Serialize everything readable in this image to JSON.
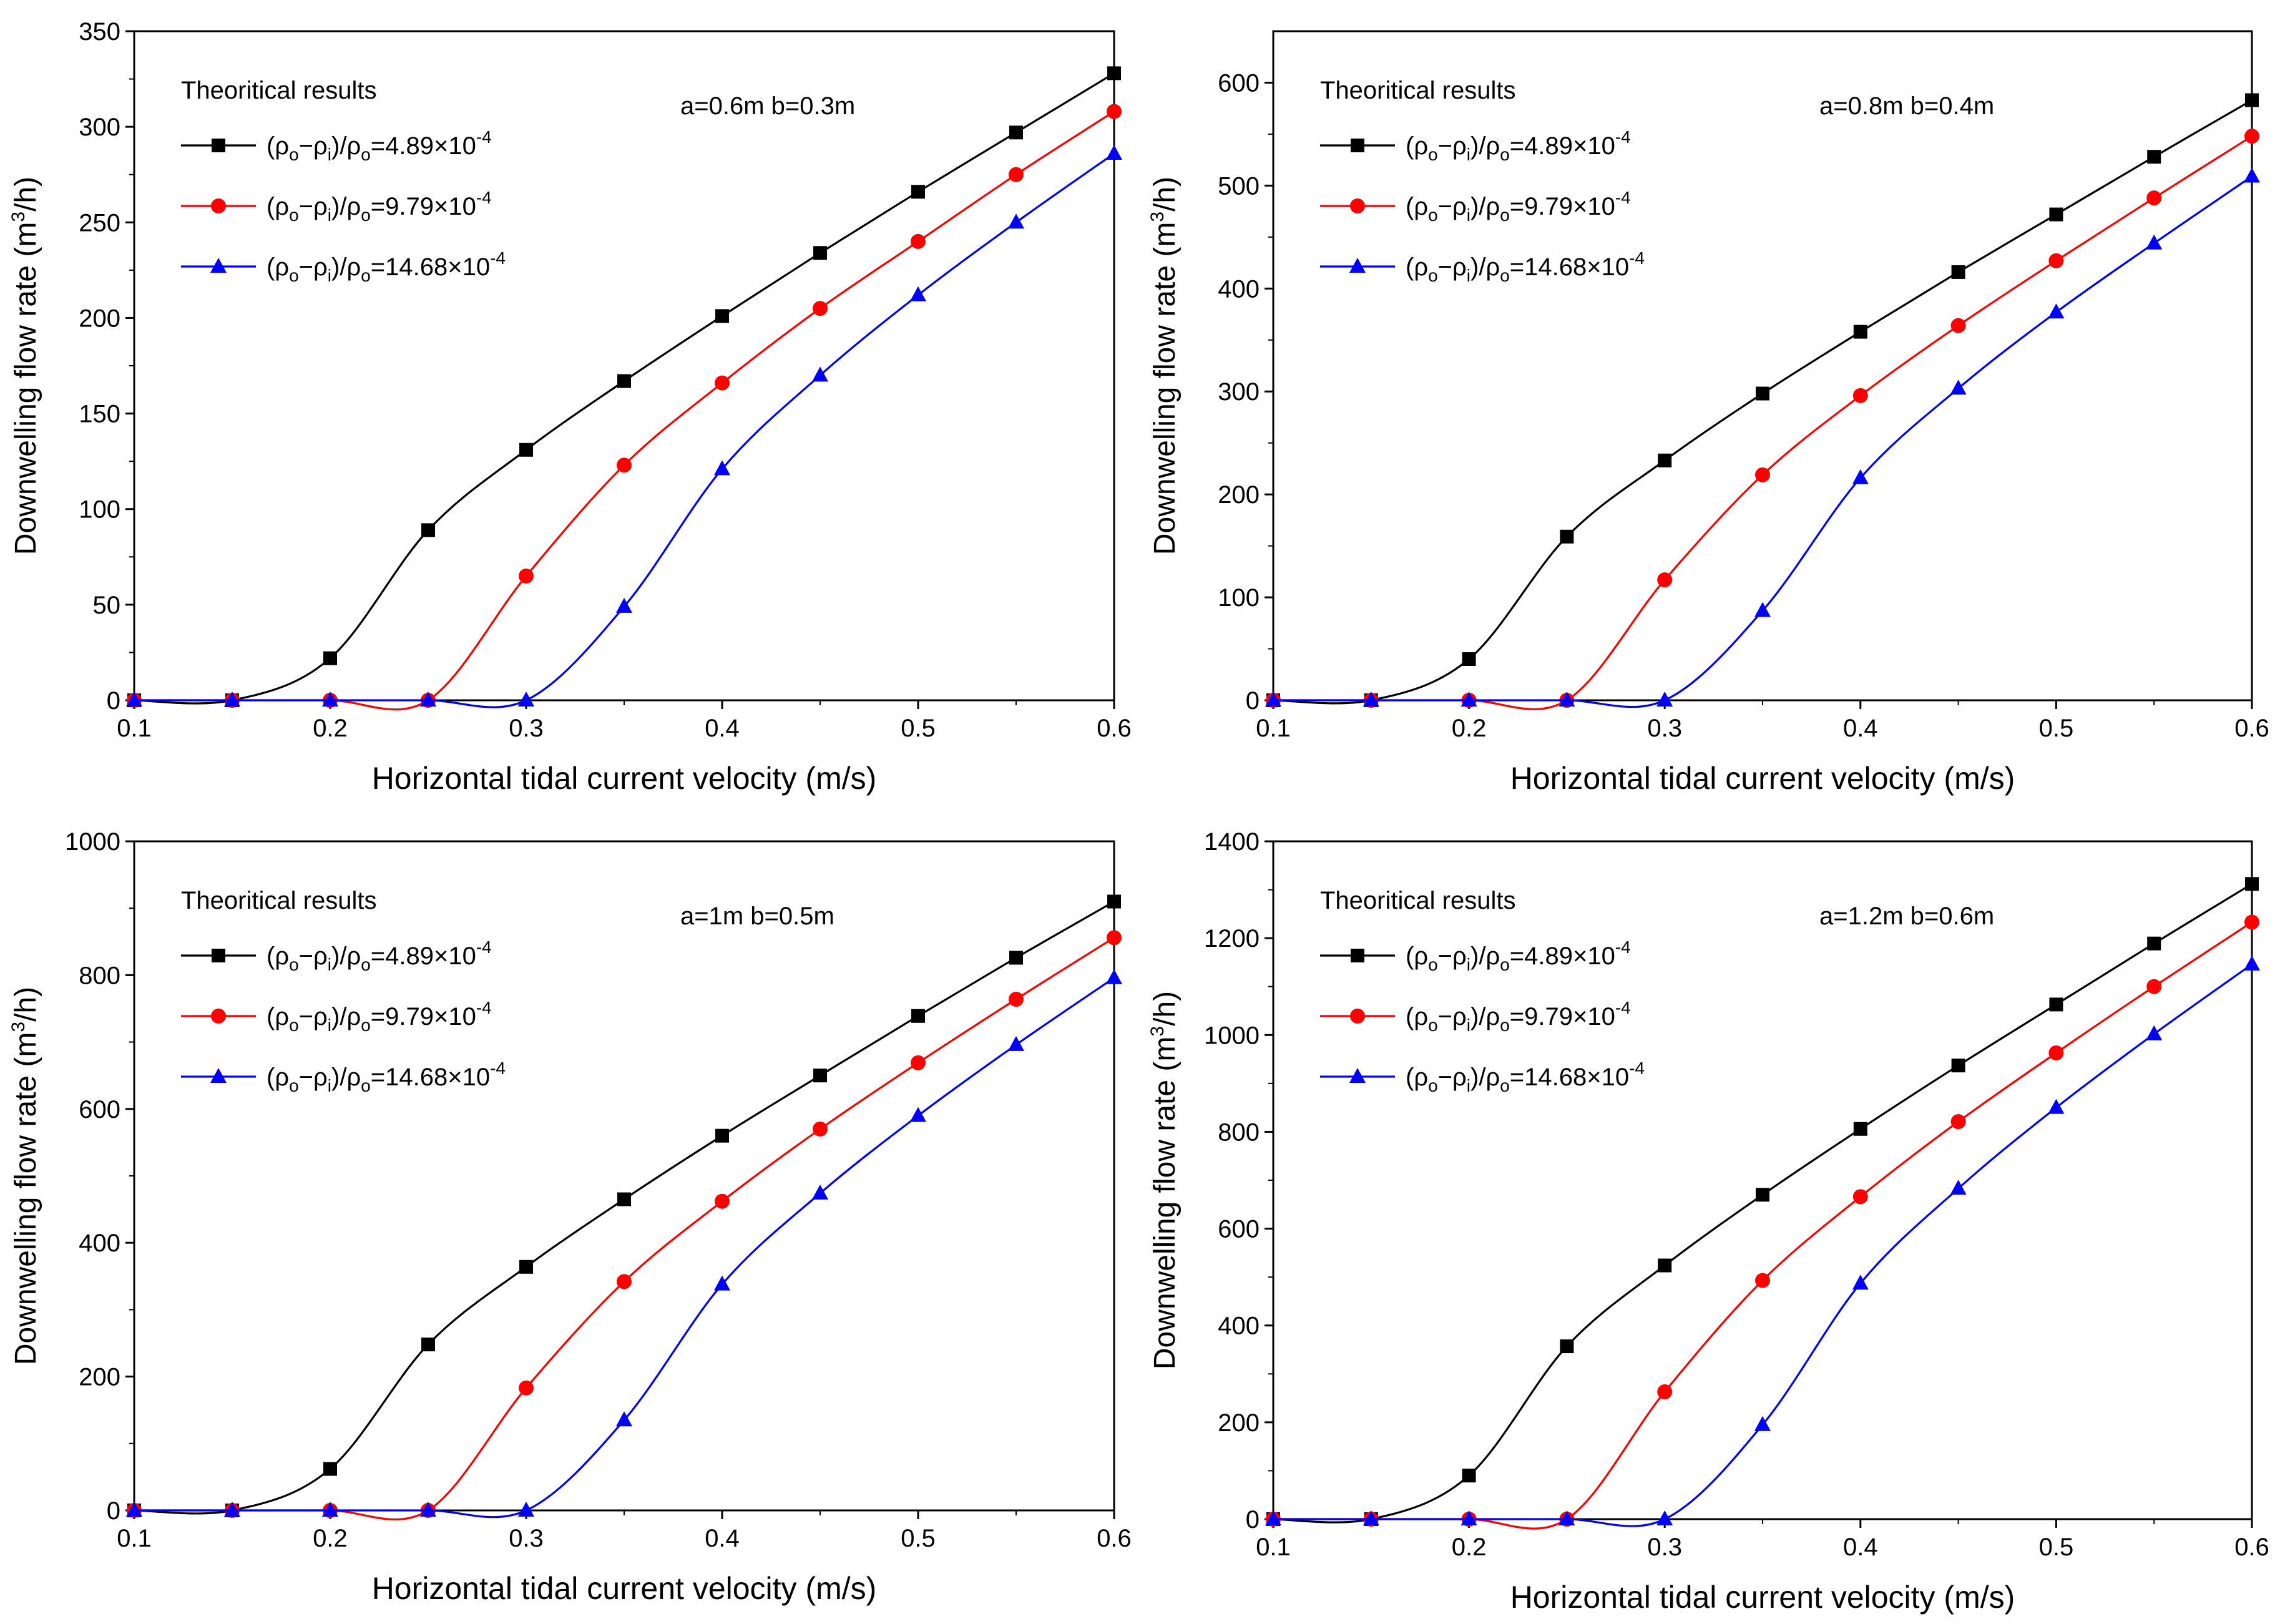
{
  "figure": {
    "layout": "2x2 grid"
  },
  "chart_data": [
    {
      "type": "line",
      "annotation": "a=0.6m b=0.3m",
      "legend_title": "Theoritical results",
      "xlabel": "Horizontal tidal current velocity (m/s)",
      "ylabel_base": "Downwelling flow rate (m",
      "ylabel_sup": "3",
      "ylabel_tail": "/h)",
      "xlim": [
        0.1,
        0.6
      ],
      "ylim": [
        0,
        350
      ],
      "xticks": [
        0.1,
        0.2,
        0.3,
        0.4,
        0.5,
        0.6
      ],
      "yticks": [
        0,
        50,
        100,
        150,
        200,
        250,
        300,
        350
      ],
      "x": [
        0.1,
        0.15,
        0.2,
        0.25,
        0.3,
        0.35,
        0.4,
        0.45,
        0.5,
        0.55,
        0.6
      ],
      "series": [
        {
          "name": "(ρo−ρi)/ρo=4.89×10^-4",
          "color": "#000000",
          "marker": "square",
          "values": [
            0,
            0,
            22,
            89,
            131,
            167,
            201,
            234,
            266,
            297,
            328
          ]
        },
        {
          "name": "(ρo−ρi)/ρo=9.79×10^-4",
          "color": "#ff0000",
          "marker": "circle",
          "values": [
            0,
            0,
            0,
            0,
            65,
            123,
            166,
            205,
            240,
            275,
            308
          ]
        },
        {
          "name": "(ρo−ρi)/ρo=14.68×10^-4",
          "color": "#0000ff",
          "marker": "triangle",
          "values": [
            0,
            0,
            0,
            0,
            0,
            49,
            121,
            170,
            212,
            250,
            286
          ]
        }
      ]
    },
    {
      "type": "line",
      "annotation": "a=0.8m b=0.4m",
      "legend_title": "Theoritical results",
      "xlabel": "Horizontal tidal current velocity (m/s)",
      "ylabel_base": "Downwelling flow rate (m",
      "ylabel_sup": "3",
      "ylabel_tail": "/h)",
      "xlim": [
        0.1,
        0.6
      ],
      "ylim": [
        0,
        650
      ],
      "xticks": [
        0.1,
        0.2,
        0.3,
        0.4,
        0.5,
        0.6
      ],
      "yticks": [
        0,
        100,
        200,
        300,
        400,
        500,
        600
      ],
      "x": [
        0.1,
        0.15,
        0.2,
        0.25,
        0.3,
        0.35,
        0.4,
        0.45,
        0.5,
        0.55,
        0.6
      ],
      "series": [
        {
          "name": "(ρo−ρi)/ρo=4.89×10^-4",
          "color": "#000000",
          "marker": "square",
          "values": [
            0,
            0,
            40,
            159,
            233,
            298,
            358,
            416,
            472,
            528,
            583
          ]
        },
        {
          "name": "(ρo−ρi)/ρo=9.79×10^-4",
          "color": "#ff0000",
          "marker": "circle",
          "values": [
            0,
            0,
            0,
            0,
            117,
            219,
            296,
            364,
            427,
            488,
            548
          ]
        },
        {
          "name": "(ρo−ρi)/ρo=14.68×10^-4",
          "color": "#0000ff",
          "marker": "triangle",
          "values": [
            0,
            0,
            0,
            0,
            0,
            87,
            216,
            303,
            377,
            444,
            509
          ]
        }
      ]
    },
    {
      "type": "line",
      "annotation": "a=1m b=0.5m",
      "legend_title": "Theoritical results",
      "xlabel": "Horizontal tidal current velocity (m/s)",
      "ylabel_base": "Downwelling flow rate (m",
      "ylabel_sup": "3",
      "ylabel_tail": "/h)",
      "xlim": [
        0.1,
        0.6
      ],
      "ylim": [
        0,
        1000
      ],
      "xticks": [
        0.1,
        0.2,
        0.3,
        0.4,
        0.5,
        0.6
      ],
      "yticks": [
        0,
        200,
        400,
        600,
        800,
        1000
      ],
      "x": [
        0.1,
        0.15,
        0.2,
        0.25,
        0.3,
        0.35,
        0.4,
        0.45,
        0.5,
        0.55,
        0.6
      ],
      "series": [
        {
          "name": "(ρo−ρi)/ρo=4.89×10^-4",
          "color": "#000000",
          "marker": "square",
          "values": [
            0,
            0,
            62,
            248,
            364,
            465,
            560,
            650,
            739,
            826,
            910
          ]
        },
        {
          "name": "(ρo−ρi)/ρo=9.79×10^-4",
          "color": "#ff0000",
          "marker": "circle",
          "values": [
            0,
            0,
            0,
            0,
            183,
            342,
            462,
            570,
            669,
            764,
            856
          ]
        },
        {
          "name": "(ρo−ρi)/ρo=14.68×10^-4",
          "color": "#0000ff",
          "marker": "triangle",
          "values": [
            0,
            0,
            0,
            0,
            0,
            135,
            338,
            474,
            590,
            696,
            796
          ]
        }
      ]
    },
    {
      "type": "line",
      "annotation": "a=1.2m b=0.6m",
      "legend_title": "Theoritical results",
      "xlabel": "Horizontal tidal current velocity (m/s)",
      "ylabel_base": "Downwelling flow rate (m",
      "ylabel_sup": "3",
      "ylabel_tail": "/h)",
      "xlim": [
        0.1,
        0.6
      ],
      "ylim": [
        0,
        1400
      ],
      "xticks": [
        0.1,
        0.2,
        0.3,
        0.4,
        0.5,
        0.6
      ],
      "yticks": [
        0,
        200,
        400,
        600,
        800,
        1000,
        1200,
        1400
      ],
      "x": [
        0.1,
        0.15,
        0.2,
        0.25,
        0.3,
        0.35,
        0.4,
        0.45,
        0.5,
        0.55,
        0.6
      ],
      "series": [
        {
          "name": "(ρo−ρi)/ρo=4.89×10^-4",
          "color": "#000000",
          "marker": "square",
          "values": [
            0,
            0,
            90,
            357,
            524,
            670,
            806,
            937,
            1063,
            1189,
            1312
          ]
        },
        {
          "name": "(ρo−ρi)/ρo=9.79×10^-4",
          "color": "#ff0000",
          "marker": "circle",
          "values": [
            0,
            0,
            0,
            0,
            263,
            493,
            666,
            821,
            963,
            1100,
            1233
          ]
        },
        {
          "name": "(ρo−ρi)/ρo=14.68×10^-4",
          "color": "#0000ff",
          "marker": "triangle",
          "values": [
            0,
            0,
            0,
            0,
            0,
            195,
            487,
            683,
            850,
            1002,
            1146
          ]
        }
      ]
    }
  ]
}
